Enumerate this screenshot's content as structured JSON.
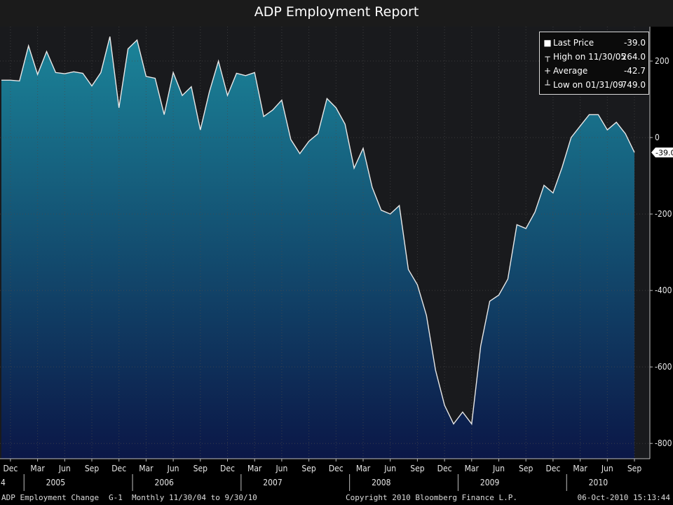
{
  "title": "ADP Employment Report",
  "chart_data": {
    "type": "area",
    "x_start": "2004-11",
    "values": [
      150,
      150,
      148,
      240,
      165,
      225,
      170,
      167,
      172,
      168,
      135,
      170,
      264,
      78,
      232,
      255,
      160,
      155,
      60,
      170,
      110,
      133,
      20,
      120,
      200,
      110,
      168,
      162,
      170,
      55,
      72,
      98,
      -5,
      -42,
      -10,
      10,
      102,
      78,
      35,
      -80,
      -28,
      -130,
      -190,
      -200,
      -178,
      -345,
      -385,
      -465,
      -608,
      -700,
      -749,
      -718,
      -749,
      -545,
      -428,
      -412,
      -370,
      -228,
      -238,
      -195,
      -125,
      -145,
      -78,
      0,
      30,
      60,
      60,
      20,
      40,
      10,
      -39
    ],
    "ylim": [
      -840,
      290
    ],
    "y_ticks": [
      200,
      0,
      -200,
      -400,
      -600,
      -800
    ],
    "y_tick_labels": [
      "200",
      "0",
      "-200",
      "-400",
      "-600",
      "-800"
    ],
    "last_value_label": "-39.0",
    "x_tick_labels": [
      {
        "label": "Dec",
        "index": 1
      },
      {
        "label": "Mar",
        "index": 4
      },
      {
        "label": "Jun",
        "index": 7
      },
      {
        "label": "Sep",
        "index": 10
      },
      {
        "label": "Dec",
        "index": 13
      },
      {
        "label": "Mar",
        "index": 16
      },
      {
        "label": "Jun",
        "index": 19
      },
      {
        "label": "Sep",
        "index": 22
      },
      {
        "label": "Dec",
        "index": 25
      },
      {
        "label": "Mar",
        "index": 28
      },
      {
        "label": "Jun",
        "index": 31
      },
      {
        "label": "Sep",
        "index": 34
      },
      {
        "label": "Dec",
        "index": 37
      },
      {
        "label": "Mar",
        "index": 40
      },
      {
        "label": "Jun",
        "index": 43
      },
      {
        "label": "Sep",
        "index": 46
      },
      {
        "label": "Dec",
        "index": 49
      },
      {
        "label": "Mar",
        "index": 52
      },
      {
        "label": "Jun",
        "index": 55
      },
      {
        "label": "Sep",
        "index": 58
      },
      {
        "label": "Dec",
        "index": 61
      },
      {
        "label": "Mar",
        "index": 64
      },
      {
        "label": "Jun",
        "index": 67
      },
      {
        "label": "Sep",
        "index": 70
      }
    ],
    "year_labels": [
      {
        "label": "4",
        "index": 0
      },
      {
        "label": "2005",
        "index": 6
      },
      {
        "label": "2006",
        "index": 18
      },
      {
        "label": "2007",
        "index": 30
      },
      {
        "label": "2008",
        "index": 42
      },
      {
        "label": "2009",
        "index": 54
      },
      {
        "label": "2010",
        "index": 66
      }
    ],
    "year_separators": [
      2,
      14,
      26,
      38,
      50,
      62
    ],
    "grid": true,
    "colors": {
      "fill_top": "#1b8499",
      "fill_bottom": "#0b1747",
      "line": "#e8e8e8",
      "background": "#191a1d",
      "grid": "#4a4a4a"
    }
  },
  "legend": {
    "items": [
      {
        "symbol": "■",
        "label": "Last Price",
        "value": "-39.0"
      },
      {
        "symbol": "┬",
        "label": "High on 11/30/05",
        "value": "264.0"
      },
      {
        "symbol": "+",
        "label": "Average",
        "value": "-42.7"
      },
      {
        "symbol": "┴",
        "label": "Low on 01/31/09",
        "value": "-749.0"
      }
    ]
  },
  "footer": {
    "left": "ADP Employment  Change",
    "chart_id": "G-1",
    "period": "Monthly  11/30/04 to 9/30/10",
    "copyright": "Copyright 2010 Bloomberg Finance L.P.",
    "timestamp": "06-Oct-2010 15:13:44"
  }
}
